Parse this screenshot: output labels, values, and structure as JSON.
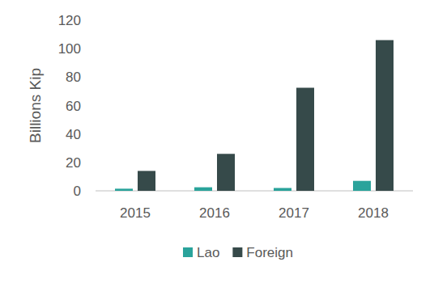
{
  "chart_data": {
    "type": "bar",
    "y_label": "Billions Kip",
    "categories": [
      "2015",
      "2016",
      "2017",
      "2018"
    ],
    "series": [
      {
        "name": "Lao",
        "color": "#2aa39b",
        "values": [
          1.5,
          2.5,
          2,
          7
        ]
      },
      {
        "name": "Foreign",
        "color": "#364a4a",
        "values": [
          14,
          26,
          72.5,
          106
        ]
      }
    ],
    "ylim": [
      0,
      120
    ],
    "yticks": [
      0,
      20,
      40,
      60,
      80,
      100,
      120
    ],
    "grid": false,
    "legend": "bottom"
  }
}
